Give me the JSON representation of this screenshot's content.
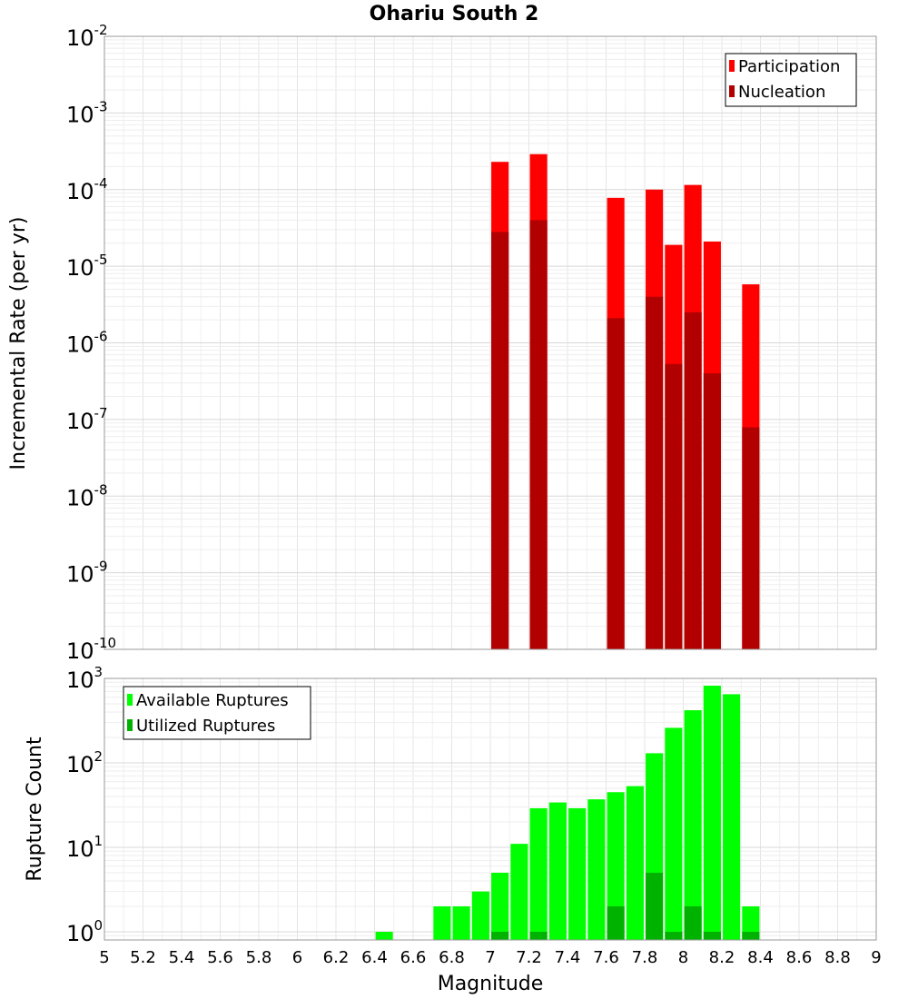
{
  "chart_data": [
    {
      "type": "bar",
      "title": "Ohariu South 2",
      "xlabel": "Magnitude",
      "ylabel": "Incremental Rate (per yr)",
      "yscale": "log",
      "ylim": [
        1e-10,
        0.01
      ],
      "xlim": [
        5,
        9
      ],
      "grid": true,
      "legend_position": "top-right",
      "y_ticks": [
        {
          "base": "10",
          "exp": "-10",
          "value": 1e-10
        },
        {
          "base": "10",
          "exp": "-9",
          "value": 1e-09
        },
        {
          "base": "10",
          "exp": "-8",
          "value": 1e-08
        },
        {
          "base": "10",
          "exp": "-7",
          "value": 1e-07
        },
        {
          "base": "10",
          "exp": "-6",
          "value": 1e-06
        },
        {
          "base": "10",
          "exp": "-5",
          "value": 1e-05
        },
        {
          "base": "10",
          "exp": "-4",
          "value": 0.0001
        },
        {
          "base": "10",
          "exp": "-3",
          "value": 0.001
        },
        {
          "base": "10",
          "exp": "-2",
          "value": 0.01
        }
      ],
      "series": [
        {
          "name": "Participation",
          "color": "#ff0000",
          "x": [
            7.05,
            7.25,
            7.65,
            7.85,
            7.95,
            8.05,
            8.15,
            8.35
          ],
          "values": [
            0.00023,
            0.00029,
            7.8e-05,
            0.0001,
            1.9e-05,
            0.000115,
            2.1e-05,
            5.8e-06
          ]
        },
        {
          "name": "Nucleation",
          "color": "#b20000",
          "x": [
            7.05,
            7.25,
            7.65,
            7.85,
            7.95,
            8.05,
            8.15,
            8.35
          ],
          "values": [
            2.8e-05,
            4e-05,
            2.1e-06,
            4e-06,
            5.3e-07,
            2.5e-06,
            4e-07,
            7.9e-08
          ]
        }
      ]
    },
    {
      "type": "bar",
      "xlabel": "Magnitude",
      "ylabel": "Rupture Count",
      "yscale": "log",
      "ylim": [
        0.8,
        1000
      ],
      "xlim": [
        5,
        9
      ],
      "grid": true,
      "legend_position": "top-left",
      "y_ticks": [
        {
          "base": "10",
          "exp": "0",
          "value": 1
        },
        {
          "base": "10",
          "exp": "1",
          "value": 10
        },
        {
          "base": "10",
          "exp": "2",
          "value": 100
        },
        {
          "base": "10",
          "exp": "3",
          "value": 1000
        }
      ],
      "x_ticks": [
        "5",
        "5.2",
        "5.4",
        "5.6",
        "5.8",
        "6",
        "6.2",
        "6.4",
        "6.6",
        "6.8",
        "7",
        "7.2",
        "7.4",
        "7.6",
        "7.8",
        "8",
        "8.2",
        "8.4",
        "8.6",
        "8.8",
        "9"
      ],
      "series": [
        {
          "name": "Available Ruptures",
          "color": "#00ff00",
          "x": [
            6.45,
            6.75,
            6.85,
            6.95,
            7.05,
            7.15,
            7.25,
            7.35,
            7.45,
            7.55,
            7.65,
            7.75,
            7.85,
            7.95,
            8.05,
            8.15,
            8.25,
            8.35
          ],
          "values": [
            1,
            2,
            2,
            3,
            5,
            11,
            29,
            34,
            29,
            37,
            45,
            53,
            130,
            260,
            420,
            820,
            650,
            2
          ]
        },
        {
          "name": "Utilized Ruptures",
          "color": "#00b200",
          "x": [
            7.05,
            7.25,
            7.65,
            7.85,
            7.95,
            8.05,
            8.15,
            8.35
          ],
          "values": [
            1,
            1,
            2,
            5,
            1,
            2,
            1,
            1
          ]
        }
      ]
    }
  ]
}
